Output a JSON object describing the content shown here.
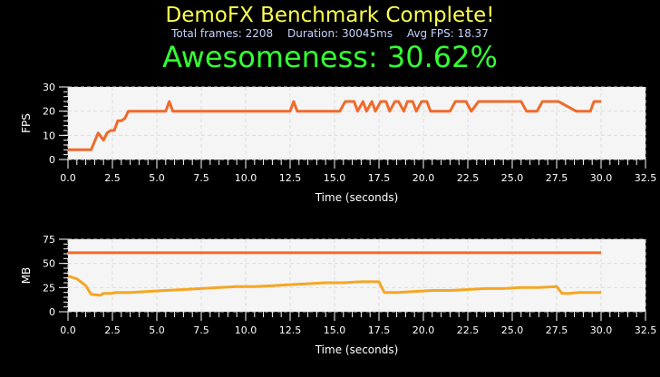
{
  "header": {
    "title": "DemoFX Benchmark Complete!",
    "total_frames": "Total frames: 2208",
    "duration": "Duration: 30045ms",
    "avg_fps": "Avg FPS: 18.37",
    "awesomeness": "Awesomeness: 30.62%"
  },
  "colors": {
    "title": "#ffff4d",
    "stats": "#c8d4ff",
    "awesome": "#33ff33",
    "plot_bg": "#f5f5f5",
    "grid": "#dddddd",
    "series_primary": "#f06a2a",
    "series_secondary": "#f5a623"
  },
  "chart_data": [
    {
      "type": "line",
      "xlabel": "Time (seconds)",
      "ylabel": "FPS",
      "xlim": [
        0,
        32.5
      ],
      "ylim": [
        0,
        30
      ],
      "xticks": [
        "0.0",
        "2.5",
        "5.0",
        "7.5",
        "10.0",
        "12.5",
        "15.0",
        "17.5",
        "20.0",
        "22.5",
        "25.0",
        "27.5",
        "30.0",
        "32.5"
      ],
      "yticks": [
        "0",
        "10",
        "20",
        "30"
      ],
      "grid": true,
      "series": [
        {
          "color": "#f06a2a",
          "x": [
            0,
            1,
            1.3,
            1.7,
            2,
            2.2,
            2.4,
            2.6,
            2.8,
            3.0,
            3.2,
            3.4,
            5.5,
            5.7,
            5.9,
            12.5,
            12.7,
            12.9,
            15.3,
            15.6,
            16.1,
            16.3,
            16.6,
            16.8,
            17.1,
            17.3,
            17.6,
            17.9,
            18.1,
            18.4,
            18.6,
            18.9,
            19.1,
            19.4,
            19.6,
            19.9,
            20.2,
            20.4,
            21.5,
            21.8,
            22.4,
            22.7,
            23.1,
            23.3,
            23.6,
            25.5,
            25.8,
            26.4,
            26.7,
            27.4,
            27.6,
            28.6,
            29.4,
            29.6,
            30.0
          ],
          "y": [
            4,
            4,
            4,
            11,
            8,
            11,
            12,
            12,
            16,
            16,
            17,
            20,
            20,
            24,
            20,
            20,
            24,
            20,
            20,
            24,
            24,
            20,
            24,
            20,
            24,
            20,
            24,
            24,
            20,
            24,
            24,
            20,
            24,
            24,
            20,
            24,
            24,
            20,
            20,
            24,
            24,
            20,
            24,
            24,
            24,
            24,
            20,
            20,
            24,
            24,
            24,
            20,
            20,
            24,
            24
          ]
        }
      ]
    },
    {
      "type": "line",
      "xlabel": "Time (seconds)",
      "ylabel": "MB",
      "xlim": [
        0,
        32.5
      ],
      "ylim": [
        0,
        75
      ],
      "xticks": [
        "0.0",
        "2.5",
        "5.0",
        "7.5",
        "10.0",
        "12.5",
        "15.0",
        "17.5",
        "20.0",
        "22.5",
        "25.0",
        "27.5",
        "30.0",
        "32.5"
      ],
      "yticks": [
        "0",
        "25",
        "50",
        "75"
      ],
      "grid": true,
      "series": [
        {
          "color": "#f06a2a",
          "x": [
            0,
            30
          ],
          "y": [
            61,
            61
          ]
        },
        {
          "color": "#f5a623",
          "x": [
            0,
            0.5,
            1,
            1.3,
            1.8,
            2,
            2.5,
            2.7,
            3.5,
            4.5,
            5.5,
            6.5,
            7.5,
            8.5,
            9.5,
            10.5,
            11.5,
            12.5,
            13.5,
            14.5,
            15.5,
            16.5,
            17.5,
            17.8,
            18.5,
            19.5,
            20.5,
            21.5,
            22.5,
            23.5,
            24.5,
            25.5,
            26.5,
            27.5,
            27.8,
            28.2,
            28.8,
            30.0
          ],
          "y": [
            37,
            34,
            27,
            18,
            17,
            19,
            19,
            20,
            20,
            21,
            22,
            23,
            24,
            25,
            26,
            26,
            27,
            28,
            29,
            30,
            30,
            31,
            31,
            20,
            20,
            21,
            22,
            22,
            23,
            24,
            24,
            25,
            25,
            26,
            19,
            19,
            20,
            20
          ]
        }
      ]
    }
  ]
}
